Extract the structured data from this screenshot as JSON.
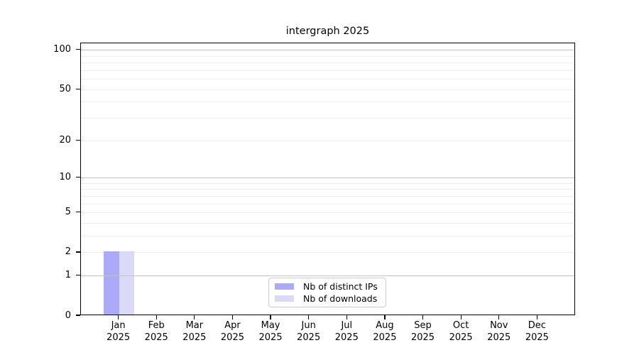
{
  "chart_data": {
    "type": "bar",
    "title": "intergraph 2025",
    "categories": [
      "Jan",
      "Feb",
      "Mar",
      "Apr",
      "May",
      "Jun",
      "Jul",
      "Aug",
      "Sep",
      "Oct",
      "Nov",
      "Dec"
    ],
    "category_year": "2025",
    "series": [
      {
        "name": "Nb of distinct IPs",
        "color": "#aaaaf8",
        "values": [
          2,
          0,
          0,
          0,
          0,
          0,
          0,
          0,
          0,
          0,
          0,
          0
        ]
      },
      {
        "name": "Nb of downloads",
        "color": "#dadaf8",
        "values": [
          2,
          0,
          0,
          0,
          0,
          0,
          0,
          0,
          0,
          0,
          0,
          0
        ]
      }
    ],
    "y_axis": {
      "scale": "log10(1+y)",
      "tick_values": [
        0,
        1,
        2,
        5,
        10,
        20,
        50,
        100
      ],
      "ymax": 113
    },
    "grid": {
      "minor_values": [
        2,
        3,
        4,
        5,
        6,
        7,
        8,
        9,
        20,
        30,
        40,
        50,
        60,
        70,
        80,
        90
      ],
      "major_values": [
        1,
        10,
        100
      ],
      "minor_color": "#ededed",
      "major_color": "#c2c2c2"
    },
    "legend": {
      "position": "bottom-center"
    },
    "colors": {
      "axis": "#000000",
      "background": "#ffffff",
      "text": "#000000",
      "legend_border": "#cccccc"
    }
  }
}
